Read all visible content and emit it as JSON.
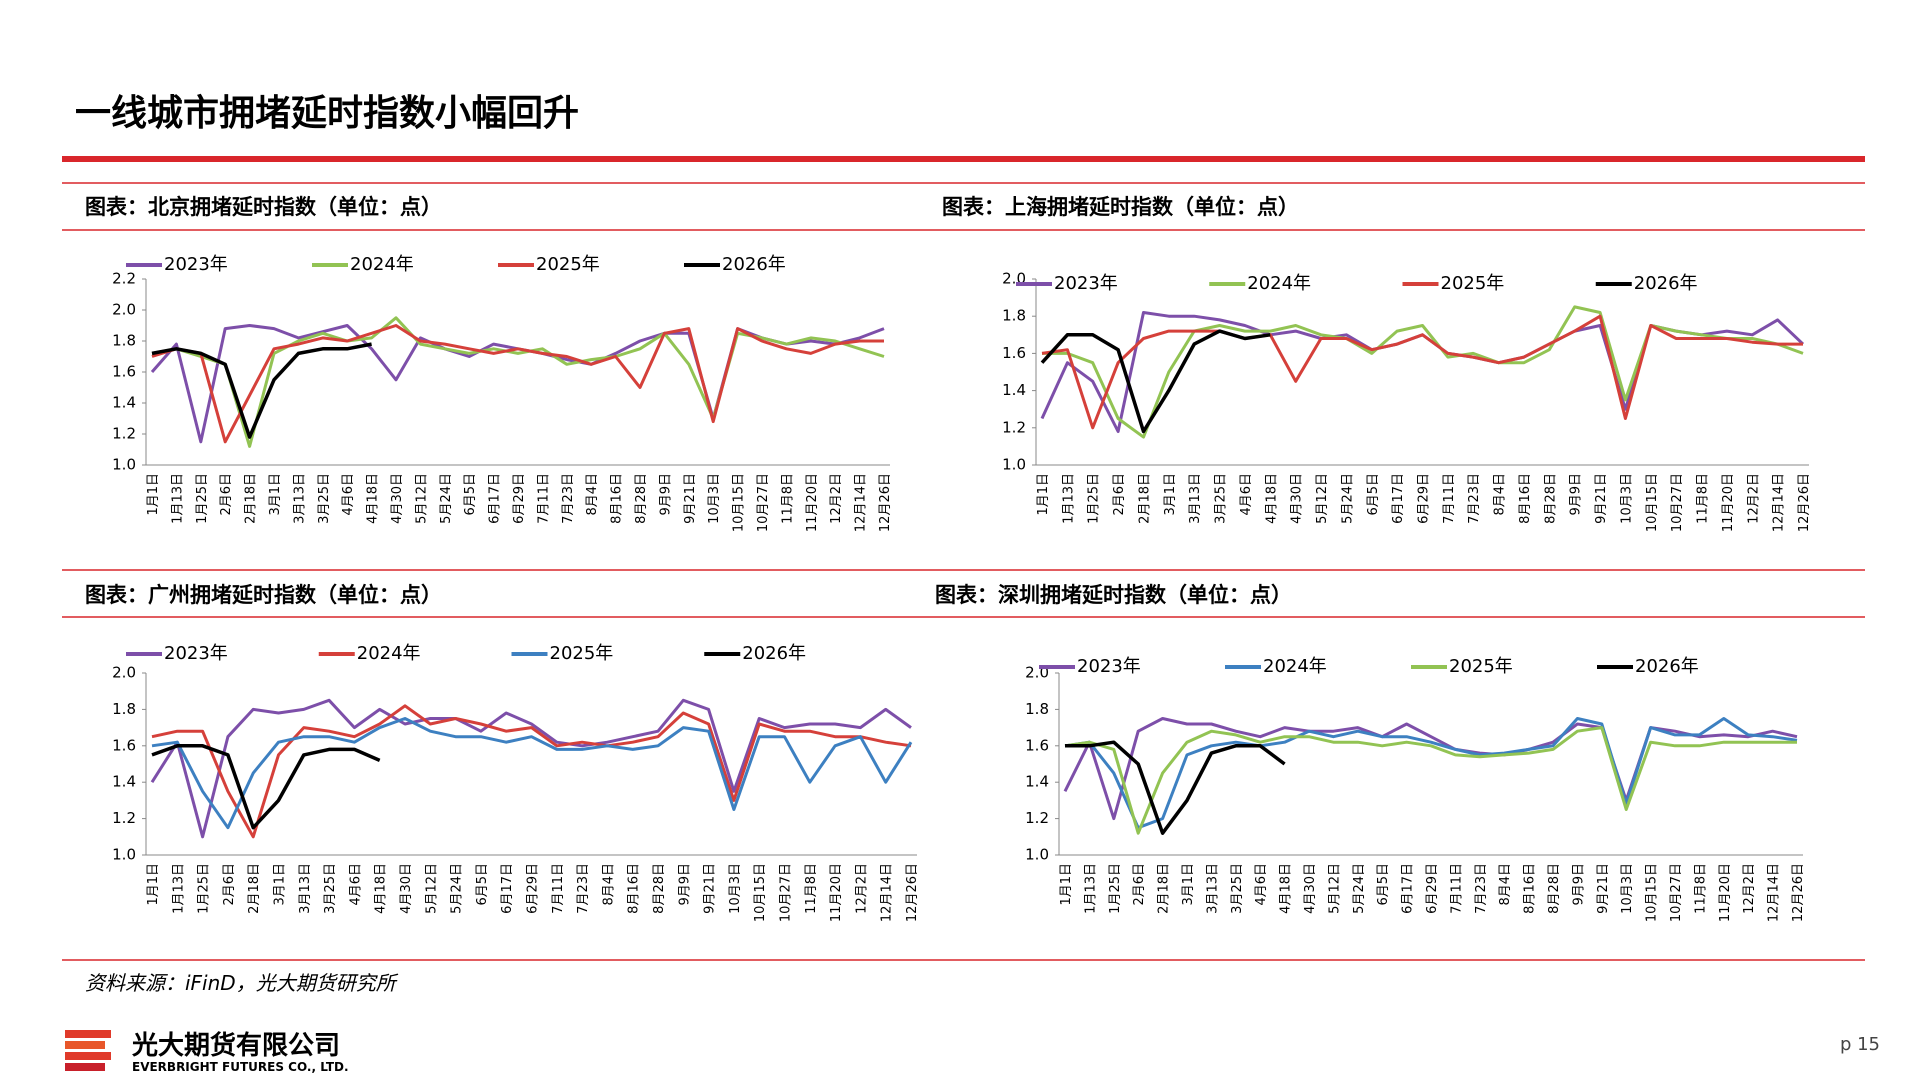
{
  "page": {
    "title": "一线城市拥堵延时指数小幅回升",
    "source": "资料来源：iFinD，光大期货研究所",
    "company_cn": "光大期货有限公司",
    "company_en": "EVERBRIGHT FUTURES CO., LTD.",
    "page_number": "p 15"
  },
  "chart_data": [
    {
      "type": "line",
      "title": "图表：北京拥堵延时指数（单位：点）",
      "categories": [
        "1月1日",
        "1月13日",
        "1月25日",
        "2月6日",
        "2月18日",
        "3月1日",
        "3月13日",
        "3月25日",
        "4月6日",
        "4月18日",
        "4月30日",
        "5月12日",
        "5月24日",
        "6月5日",
        "6月17日",
        "6月29日",
        "7月11日",
        "7月23日",
        "8月4日",
        "8月16日",
        "8月28日",
        "9月9日",
        "9月21日",
        "10月3日",
        "10月15日",
        "10月27日",
        "11月8日",
        "11月20日",
        "12月2日",
        "12月14日",
        "12月26日"
      ],
      "ylim": [
        1.0,
        2.2
      ],
      "yticks": [
        {
          "value": 1.0,
          "label": "1.0"
        },
        1.2,
        1.4,
        1.6,
        1.8,
        {
          "value": 2.0,
          "label": "2.0"
        },
        2.2
      ],
      "series": [
        {
          "name": "2023年",
          "color": "#7d4fa9",
          "values": [
            1.6,
            1.78,
            1.15,
            1.88,
            1.9,
            1.88,
            1.82,
            1.86,
            1.9,
            1.75,
            1.55,
            1.82,
            1.75,
            1.7,
            1.78,
            1.75,
            1.72,
            1.68,
            1.65,
            1.72,
            1.8,
            1.85,
            1.85,
            1.3,
            1.88,
            1.82,
            1.78,
            1.8,
            1.78,
            1.82,
            1.88
          ]
        },
        {
          "name": "2024年",
          "color": "#92c353",
          "values": [
            1.72,
            1.75,
            1.7,
            1.65,
            1.12,
            1.72,
            1.8,
            1.85,
            1.8,
            1.82,
            1.95,
            1.78,
            1.75,
            1.72,
            1.75,
            1.72,
            1.75,
            1.65,
            1.68,
            1.7,
            1.75,
            1.85,
            1.65,
            1.3,
            1.85,
            1.82,
            1.78,
            1.82,
            1.8,
            1.75,
            1.7
          ]
        },
        {
          "name": "2025年",
          "color": "#d5403a",
          "values": [
            1.7,
            1.75,
            1.72,
            1.15,
            1.45,
            1.75,
            1.78,
            1.82,
            1.8,
            1.85,
            1.9,
            1.8,
            1.78,
            1.75,
            1.72,
            1.75,
            1.72,
            1.7,
            1.65,
            1.7,
            1.5,
            1.85,
            1.88,
            1.28,
            1.88,
            1.8,
            1.75,
            1.72,
            1.78,
            1.8,
            1.8
          ]
        },
        {
          "name": "2026年",
          "color": "#000000",
          "values": [
            1.72,
            1.75,
            1.72,
            1.65,
            1.18,
            1.55,
            1.72,
            1.75,
            1.75,
            1.78,
            null,
            null,
            null,
            null,
            null,
            null,
            null,
            null,
            null,
            null,
            null,
            null,
            null,
            null,
            null,
            null,
            null,
            null,
            null,
            null,
            null
          ]
        }
      ]
    },
    {
      "type": "line",
      "title": "图表：上海拥堵延时指数（单位：点）",
      "categories": [
        "1月1日",
        "1月13日",
        "1月25日",
        "2月6日",
        "2月18日",
        "3月1日",
        "3月13日",
        "3月25日",
        "4月6日",
        "4月18日",
        "4月30日",
        "5月12日",
        "5月24日",
        "6月5日",
        "6月17日",
        "6月29日",
        "7月11日",
        "7月23日",
        "8月4日",
        "8月16日",
        "8月28日",
        "9月9日",
        "9月21日",
        "10月3日",
        "10月15日",
        "10月27日",
        "11月8日",
        "11月20日",
        "12月2日",
        "12月14日",
        "12月26日"
      ],
      "ylim": [
        1.0,
        2.0
      ],
      "yticks": [
        {
          "value": 1.0,
          "label": "1.0"
        },
        1.2,
        1.4,
        1.6,
        1.8,
        {
          "value": 2.0,
          "label": "2.0"
        }
      ],
      "series": [
        {
          "name": "2023年",
          "color": "#7d4fa9",
          "values": [
            1.25,
            1.55,
            1.45,
            1.18,
            1.82,
            1.8,
            1.8,
            1.78,
            1.75,
            1.7,
            1.72,
            1.68,
            1.7,
            1.62,
            1.65,
            1.7,
            1.6,
            1.58,
            1.55,
            1.58,
            1.65,
            1.72,
            1.75,
            1.3,
            1.75,
            1.72,
            1.7,
            1.72,
            1.7,
            1.78,
            1.65
          ]
        },
        {
          "name": "2024年",
          "color": "#92c353",
          "values": [
            1.6,
            1.6,
            1.55,
            1.25,
            1.15,
            1.5,
            1.72,
            1.75,
            1.72,
            1.72,
            1.75,
            1.7,
            1.68,
            1.6,
            1.72,
            1.75,
            1.58,
            1.6,
            1.55,
            1.55,
            1.62,
            1.85,
            1.82,
            1.35,
            1.75,
            1.72,
            1.7,
            1.68,
            1.68,
            1.65,
            1.6
          ]
        },
        {
          "name": "2025年",
          "color": "#d5403a",
          "values": [
            1.6,
            1.62,
            1.2,
            1.55,
            1.68,
            1.72,
            1.72,
            1.72,
            1.68,
            1.7,
            1.45,
            1.68,
            1.68,
            1.62,
            1.65,
            1.7,
            1.6,
            1.58,
            1.55,
            1.58,
            1.65,
            1.72,
            1.8,
            1.25,
            1.75,
            1.68,
            1.68,
            1.68,
            1.66,
            1.65,
            1.65
          ]
        },
        {
          "name": "2026年",
          "color": "#000000",
          "values": [
            1.55,
            1.7,
            1.7,
            1.62,
            1.18,
            1.4,
            1.65,
            1.72,
            1.68,
            1.7,
            null,
            null,
            null,
            null,
            null,
            null,
            null,
            null,
            null,
            null,
            null,
            null,
            null,
            null,
            null,
            null,
            null,
            null,
            null,
            null,
            null
          ]
        }
      ]
    },
    {
      "type": "line",
      "title": "图表：广州拥堵延时指数（单位：点）",
      "categories": [
        "1月1日",
        "1月13日",
        "1月25日",
        "2月6日",
        "2月18日",
        "3月1日",
        "3月13日",
        "3月25日",
        "4月6日",
        "4月18日",
        "4月30日",
        "5月12日",
        "5月24日",
        "6月5日",
        "6月17日",
        "6月29日",
        "7月11日",
        "7月23日",
        "8月4日",
        "8月16日",
        "8月28日",
        "9月9日",
        "9月21日",
        "10月3日",
        "10月15日",
        "10月27日",
        "11月8日",
        "11月20日",
        "12月2日",
        "12月14日",
        "12月26日"
      ],
      "ylim": [
        1.0,
        2.0
      ],
      "yticks": [
        {
          "value": 1.0,
          "label": "1.0"
        },
        1.2,
        1.4,
        1.6,
        1.8,
        {
          "value": 2.0,
          "label": "2.0"
        }
      ],
      "series": [
        {
          "name": "2023年",
          "color": "#7d4fa9",
          "values": [
            1.4,
            1.62,
            1.1,
            1.65,
            1.8,
            1.78,
            1.8,
            1.85,
            1.7,
            1.8,
            1.72,
            1.75,
            1.75,
            1.68,
            1.78,
            1.72,
            1.62,
            1.6,
            1.62,
            1.65,
            1.68,
            1.85,
            1.8,
            1.35,
            1.75,
            1.7,
            1.72,
            1.72,
            1.7,
            1.8,
            1.7
          ]
        },
        {
          "name": "2024年",
          "color": "#d5403a",
          "values": [
            1.65,
            1.68,
            1.68,
            1.35,
            1.1,
            1.55,
            1.7,
            1.68,
            1.65,
            1.72,
            1.82,
            1.72,
            1.75,
            1.72,
            1.68,
            1.7,
            1.6,
            1.62,
            1.6,
            1.62,
            1.65,
            1.78,
            1.72,
            1.3,
            1.72,
            1.68,
            1.68,
            1.65,
            1.65,
            1.62,
            1.6
          ]
        },
        {
          "name": "2025年",
          "color": "#3d80c1",
          "values": [
            1.6,
            1.62,
            1.35,
            1.15,
            1.45,
            1.62,
            1.65,
            1.65,
            1.62,
            1.7,
            1.75,
            1.68,
            1.65,
            1.65,
            1.62,
            1.65,
            1.58,
            1.58,
            1.6,
            1.58,
            1.6,
            1.7,
            1.68,
            1.25,
            1.65,
            1.65,
            1.4,
            1.6,
            1.65,
            1.4,
            1.62
          ]
        },
        {
          "name": "2026年",
          "color": "#000000",
          "values": [
            1.55,
            1.6,
            1.6,
            1.55,
            1.15,
            1.3,
            1.55,
            1.58,
            1.58,
            1.52,
            null,
            null,
            null,
            null,
            null,
            null,
            null,
            null,
            null,
            null,
            null,
            null,
            null,
            null,
            null,
            null,
            null,
            null,
            null,
            null,
            null
          ]
        }
      ]
    },
    {
      "type": "line",
      "title": "图表：深圳拥堵延时指数（单位：点）",
      "categories": [
        "1月1日",
        "1月13日",
        "1月25日",
        "2月6日",
        "2月18日",
        "3月1日",
        "3月13日",
        "3月25日",
        "4月6日",
        "4月18日",
        "4月30日",
        "5月12日",
        "5月24日",
        "6月5日",
        "6月17日",
        "6月29日",
        "7月11日",
        "7月23日",
        "8月4日",
        "8月16日",
        "8月28日",
        "9月9日",
        "9月21日",
        "10月3日",
        "10月15日",
        "10月27日",
        "11月8日",
        "11月20日",
        "12月2日",
        "12月14日",
        "12月26日"
      ],
      "ylim": [
        1.0,
        2.0
      ],
      "yticks": [
        {
          "value": 1.0,
          "label": "1.0"
        },
        1.2,
        1.4,
        1.6,
        1.8,
        {
          "value": 2.0,
          "label": "2.0"
        }
      ],
      "series": [
        {
          "name": "2023年",
          "color": "#7d4fa9",
          "values": [
            1.35,
            1.62,
            1.2,
            1.68,
            1.75,
            1.72,
            1.72,
            1.68,
            1.65,
            1.7,
            1.68,
            1.68,
            1.7,
            1.65,
            1.72,
            1.65,
            1.58,
            1.56,
            1.55,
            1.58,
            1.62,
            1.72,
            1.7,
            1.3,
            1.7,
            1.68,
            1.65,
            1.66,
            1.65,
            1.68,
            1.65
          ]
        },
        {
          "name": "2024年",
          "color": "#3d80c1",
          "values": [
            1.6,
            1.62,
            1.45,
            1.15,
            1.2,
            1.55,
            1.6,
            1.62,
            1.6,
            1.62,
            1.68,
            1.65,
            1.68,
            1.65,
            1.65,
            1.62,
            1.58,
            1.55,
            1.56,
            1.58,
            1.6,
            1.75,
            1.72,
            1.28,
            1.7,
            1.66,
            1.66,
            1.75,
            1.66,
            1.65,
            1.63
          ]
        },
        {
          "name": "2025年",
          "color": "#92c353",
          "values": [
            1.6,
            1.62,
            1.58,
            1.12,
            1.45,
            1.62,
            1.68,
            1.66,
            1.62,
            1.65,
            1.65,
            1.62,
            1.62,
            1.6,
            1.62,
            1.6,
            1.55,
            1.54,
            1.55,
            1.56,
            1.58,
            1.68,
            1.7,
            1.25,
            1.62,
            1.6,
            1.6,
            1.62,
            1.62,
            1.62,
            1.62
          ]
        },
        {
          "name": "2026年",
          "color": "#000000",
          "values": [
            1.6,
            1.6,
            1.62,
            1.5,
            1.12,
            1.3,
            1.56,
            1.6,
            1.6,
            1.5,
            null,
            null,
            null,
            null,
            null,
            null,
            null,
            null,
            null,
            null,
            null,
            null,
            null,
            null,
            null,
            null,
            null,
            null,
            null,
            null,
            null
          ]
        }
      ]
    }
  ]
}
